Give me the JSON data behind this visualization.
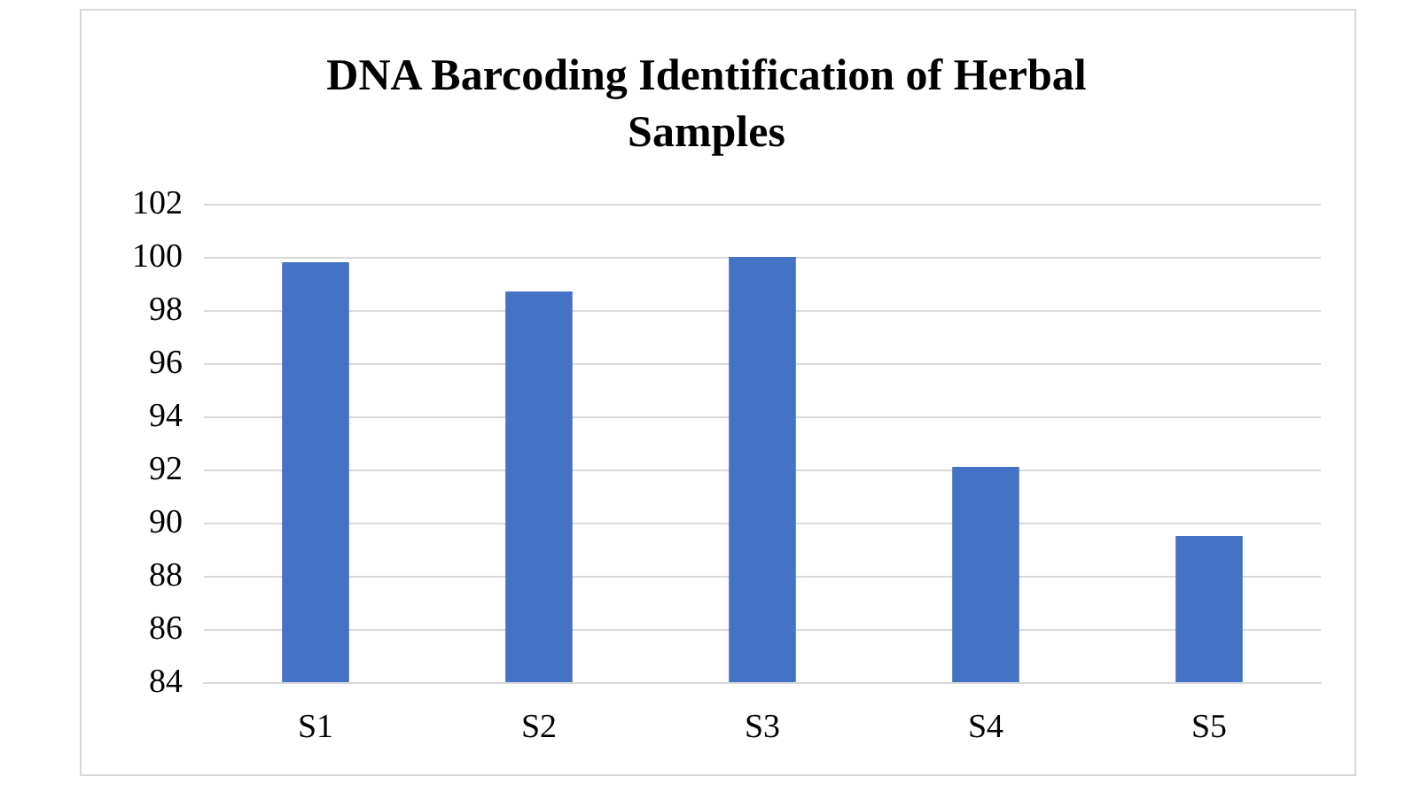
{
  "chart_data": {
    "type": "bar",
    "title": "DNA Barcoding Identification of Herbal\nSamples",
    "categories": [
      "S1",
      "S2",
      "S3",
      "S4",
      "S5"
    ],
    "values": [
      99.8,
      98.7,
      100,
      92.1,
      89.5
    ],
    "color": "#4472c4",
    "ylim": [
      84,
      102
    ],
    "yticks": [
      84,
      86,
      88,
      90,
      92,
      94,
      96,
      98,
      100,
      102
    ],
    "grid": "y"
  }
}
